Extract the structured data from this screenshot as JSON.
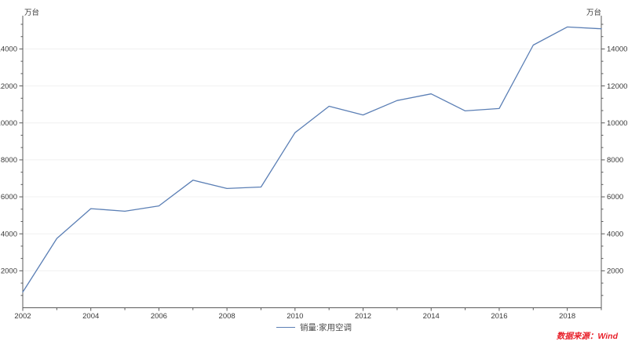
{
  "chart_data": {
    "type": "line",
    "x": [
      2002,
      2003,
      2004,
      2005,
      2006,
      2007,
      2008,
      2009,
      2010,
      2011,
      2012,
      2013,
      2014,
      2015,
      2016,
      2017,
      2018,
      2019
    ],
    "series": [
      {
        "name": "销量:家用空调",
        "color": "#5b7fb5",
        "values": [
          850,
          3750,
          5360,
          5220,
          5510,
          6900,
          6450,
          6530,
          9470,
          10900,
          10430,
          11210,
          11570,
          10650,
          10780,
          14210,
          15190,
          15090
        ]
      }
    ],
    "title": "",
    "xlabel": "",
    "ylabel": "万台",
    "y_unit": "万台",
    "y_unit_sides": [
      "left",
      "right"
    ],
    "xlim": [
      2002,
      2019
    ],
    "ylim": [
      0,
      15800
    ],
    "y_ticks": [
      2000,
      4000,
      6000,
      8000,
      10000,
      12000,
      14000
    ],
    "y_minor_ticks_per_interval": 2,
    "x_tick_years_labeled": [
      2002,
      2004,
      2006,
      2008,
      2010,
      2012,
      2014,
      2016,
      2018
    ],
    "x_minor_tick_every_year": true,
    "grid": "horizontal-major-only",
    "legend_position": "bottom-center",
    "source_note": "数据来源：Wind"
  },
  "colors": {
    "line": "#5b7fb5",
    "axis": "#5a5a5a",
    "tick_label": "#3a3a3a",
    "grid": "#f0f0f0",
    "source_text": "#e8202a",
    "legend_text": "#4a4a4a",
    "background": "#ffffff"
  }
}
